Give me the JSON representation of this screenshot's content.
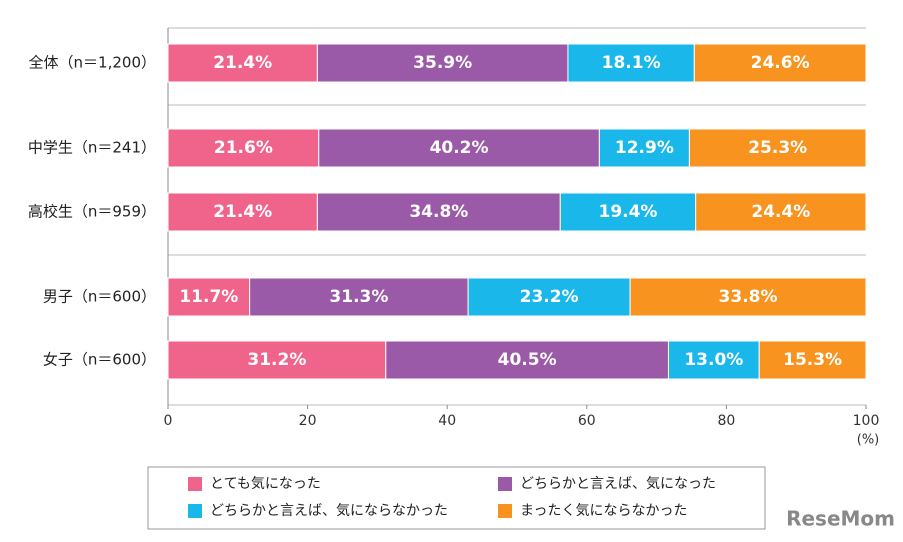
{
  "chart_data": {
    "type": "stacked-barh",
    "categories": [
      "全体（n＝1,200）",
      "中学生（n＝241）",
      "高校生（n＝959）",
      "男子（n＝600）",
      "女子（n＝600）"
    ],
    "series": [
      {
        "name": "とても気になった",
        "color": "#f0648c",
        "values": [
          21.4,
          21.6,
          21.4,
          11.7,
          31.2
        ],
        "value_labels": [
          "21.4%",
          "21.6%",
          "21.4%",
          "11.7%",
          "31.2%"
        ]
      },
      {
        "name": "どちらかと言えば、気になった",
        "color": "#9b5aa7",
        "values": [
          35.9,
          40.2,
          34.8,
          31.3,
          40.5
        ],
        "value_labels": [
          "35.9%",
          "40.2%",
          "34.8%",
          "31.3%",
          "40.5%"
        ]
      },
      {
        "name": "どちらかと言えば、気にならなかった",
        "color": "#1ab7ea",
        "values": [
          18.1,
          12.9,
          19.4,
          23.2,
          13.0
        ],
        "value_labels": [
          "18.1%",
          "12.9%",
          "19.4%",
          "23.2%",
          "13.0%"
        ]
      },
      {
        "name": "まったく気にならなかった",
        "color": "#f7931e",
        "values": [
          24.6,
          25.3,
          24.4,
          33.8,
          15.3
        ],
        "value_labels": [
          "24.6%",
          "25.3%",
          "24.4%",
          "33.8%",
          "15.3%"
        ]
      }
    ],
    "xlim": [
      0,
      100
    ],
    "xticks": [
      0,
      20,
      40,
      60,
      80,
      100
    ],
    "x_unit": "(%)",
    "watermark": "ReseMom"
  }
}
